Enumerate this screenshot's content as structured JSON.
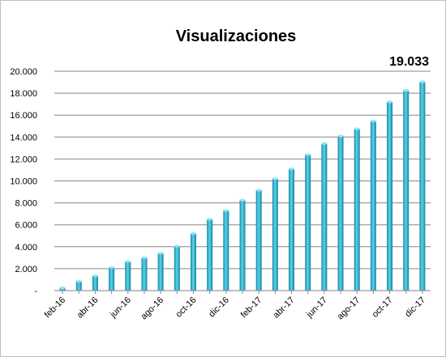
{
  "chart_data": {
    "type": "bar",
    "title": "Visualizaciones",
    "annotation": "19.033",
    "xlabel": "",
    "ylabel": "",
    "ylim": [
      0,
      20000
    ],
    "yticks": [
      0,
      2000,
      4000,
      6000,
      8000,
      10000,
      12000,
      14000,
      16000,
      18000,
      20000
    ],
    "ytick_labels": [
      "-",
      "2.000",
      "4.000",
      "6.000",
      "8.000",
      "10.000",
      "12.000",
      "14.000",
      "16.000",
      "18.000",
      "20.000"
    ],
    "grid": true,
    "legend": "none",
    "bar_color": "#1fa9c6",
    "categories": [
      "feb-16",
      "mar-16",
      "abr-16",
      "may-16",
      "jun-16",
      "jul-16",
      "ago-16",
      "sep-16",
      "oct-16",
      "nov-16",
      "dic-16",
      "ene-17",
      "feb-17",
      "mar-17",
      "abr-17",
      "may-17",
      "jun-17",
      "jul-17",
      "ago-17",
      "sep-17",
      "oct-17",
      "nov-17",
      "dic-17"
    ],
    "visible_category_labels": [
      "feb-16",
      "abr-16",
      "jun-16",
      "ago-16",
      "oct-16",
      "dic-16",
      "feb-17",
      "abr-17",
      "jun-17",
      "ago-17",
      "oct-17",
      "dic-17"
    ],
    "values": [
      250,
      850,
      1350,
      2100,
      2650,
      3000,
      3400,
      4050,
      5200,
      6500,
      7300,
      8250,
      9150,
      10200,
      11100,
      12400,
      13400,
      14100,
      14750,
      15450,
      17200,
      18250,
      19033
    ]
  }
}
